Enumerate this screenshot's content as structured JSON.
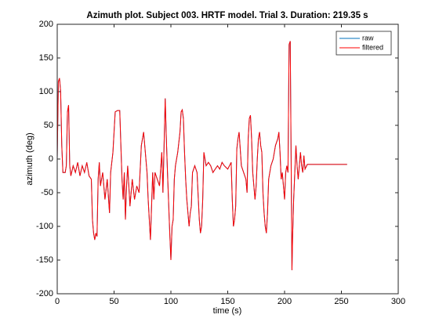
{
  "chart_data": {
    "type": "line",
    "title": "Azimuth plot. Subject 003. HRTF model. Trial 3. Duration: 219.35 s",
    "xlabel": "time (s)",
    "ylabel": "azimuth (deg)",
    "xlim": [
      0,
      300
    ],
    "ylim": [
      -200,
      200
    ],
    "xticks": [
      0,
      50,
      100,
      150,
      200,
      250,
      300
    ],
    "yticks": [
      -200,
      -150,
      -100,
      -50,
      0,
      50,
      100,
      150,
      200
    ],
    "legend": "northeast",
    "x": [
      0,
      1,
      2,
      3,
      4,
      5,
      7,
      8,
      9,
      10,
      11,
      12,
      14,
      16,
      18,
      20,
      22,
      24,
      26,
      28,
      30,
      31,
      32,
      33,
      34,
      35,
      36,
      37,
      38,
      40,
      42,
      44,
      46,
      47,
      49,
      51,
      53,
      55,
      56,
      57,
      58,
      59,
      60,
      61,
      62,
      64,
      66,
      68,
      70,
      72,
      74,
      76,
      78,
      79,
      80,
      82,
      84,
      85,
      86,
      88,
      90,
      92,
      93,
      94,
      95,
      96,
      97,
      99,
      100,
      101,
      102,
      103,
      104,
      106,
      108,
      109,
      110,
      111,
      112,
      113,
      114,
      116,
      117,
      118,
      119,
      121,
      123,
      125,
      126,
      127,
      128,
      129,
      131,
      133,
      135,
      137,
      139,
      141,
      143,
      145,
      147,
      150,
      153,
      154,
      155,
      156,
      157,
      158,
      159,
      160,
      162,
      164,
      166,
      167,
      168,
      169,
      170,
      171,
      172,
      173,
      174,
      175,
      176,
      177,
      178,
      179,
      180,
      181,
      182,
      183,
      184,
      185,
      186,
      188,
      190,
      192,
      194,
      195,
      196,
      197,
      198,
      200,
      201,
      202,
      203,
      204,
      205,
      205.5,
      206,
      206.5,
      207,
      208,
      209,
      210,
      211,
      212,
      214,
      215,
      216,
      217,
      218,
      220,
      255
    ],
    "series": [
      {
        "name": "raw",
        "color": "#0072bd",
        "values": [
          0,
          115,
          120,
          100,
          20,
          -20,
          -20,
          -10,
          70,
          80,
          -10,
          -25,
          -10,
          -20,
          -5,
          -25,
          -10,
          -20,
          -5,
          -25,
          -30,
          -90,
          -110,
          -120,
          -110,
          -115,
          -30,
          -5,
          -40,
          -20,
          -60,
          -30,
          -80,
          -20,
          10,
          70,
          72,
          72,
          20,
          -30,
          -60,
          -20,
          -90,
          -40,
          -10,
          -70,
          -30,
          -60,
          -40,
          -50,
          20,
          40,
          0,
          -20,
          -60,
          -120,
          -20,
          -60,
          -20,
          -30,
          -40,
          10,
          -50,
          20,
          90,
          30,
          -20,
          -110,
          -150,
          -100,
          -90,
          -30,
          -10,
          10,
          40,
          70,
          73,
          60,
          10,
          -30,
          -60,
          -100,
          -80,
          -70,
          -20,
          -10,
          -20,
          -90,
          -110,
          -100,
          -60,
          10,
          -10,
          -5,
          -10,
          -20,
          -15,
          -10,
          -15,
          -5,
          -10,
          -15,
          -5,
          -60,
          -100,
          -90,
          -70,
          15,
          30,
          40,
          -10,
          -20,
          -30,
          -50,
          30,
          60,
          65,
          30,
          -20,
          -40,
          -60,
          -40,
          0,
          30,
          40,
          20,
          10,
          -50,
          -80,
          -100,
          -110,
          -80,
          -30,
          -10,
          0,
          20,
          30,
          40,
          10,
          -30,
          -20,
          -60,
          -20,
          -10,
          -20,
          170,
          175,
          60,
          -50,
          -165,
          -120,
          -60,
          -20,
          20,
          -10,
          -30,
          10,
          -10,
          -20,
          5,
          -15,
          -8,
          -8
        ]
      },
      {
        "name": "filtered",
        "color": "#ff0000",
        "values": [
          0,
          115,
          120,
          100,
          20,
          -20,
          -20,
          -10,
          70,
          80,
          -10,
          -25,
          -10,
          -20,
          -5,
          -25,
          -10,
          -20,
          -5,
          -25,
          -30,
          -90,
          -110,
          -120,
          -110,
          -115,
          -30,
          -5,
          -40,
          -20,
          -60,
          -30,
          -80,
          -20,
          10,
          70,
          72,
          72,
          20,
          -30,
          -60,
          -20,
          -90,
          -40,
          -10,
          -70,
          -30,
          -60,
          -40,
          -50,
          20,
          40,
          0,
          -20,
          -60,
          -120,
          -20,
          -60,
          -20,
          -30,
          -40,
          10,
          -50,
          20,
          90,
          30,
          -20,
          -110,
          -150,
          -100,
          -90,
          -30,
          -10,
          10,
          40,
          70,
          73,
          60,
          10,
          -30,
          -60,
          -100,
          -80,
          -70,
          -20,
          -10,
          -20,
          -90,
          -110,
          -100,
          -60,
          10,
          -10,
          -5,
          -10,
          -20,
          -15,
          -10,
          -15,
          -5,
          -10,
          -15,
          -5,
          -60,
          -100,
          -90,
          -70,
          15,
          30,
          40,
          -10,
          -20,
          -30,
          -50,
          30,
          60,
          65,
          30,
          -20,
          -40,
          -60,
          -40,
          0,
          30,
          40,
          20,
          10,
          -50,
          -80,
          -100,
          -110,
          -80,
          -30,
          -10,
          0,
          20,
          30,
          40,
          10,
          -30,
          -20,
          -60,
          -20,
          -10,
          -20,
          170,
          175,
          60,
          -50,
          -165,
          -120,
          -60,
          -20,
          20,
          -10,
          -30,
          10,
          -10,
          -20,
          5,
          -15,
          -8,
          -8
        ]
      }
    ]
  }
}
